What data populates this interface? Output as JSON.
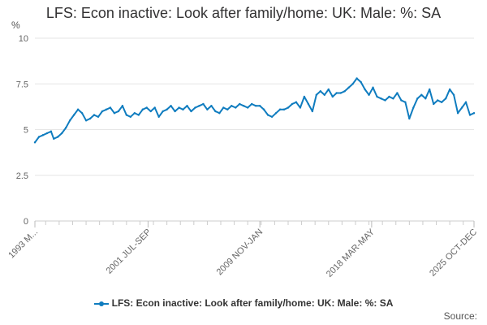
{
  "title": "LFS: Econ inactive: Look after family/home: UK: Male: %: SA",
  "y_unit": "%",
  "legend_label": "LFS: Econ inactive: Look after family/home: UK: Male: %: SA",
  "source_label": "Source:",
  "series_color": "#0f7cbf",
  "chart_data": {
    "type": "line",
    "ylim": [
      0,
      10
    ],
    "y_ticks": [
      0,
      2.5,
      5,
      7.5,
      10
    ],
    "y_tick_labels": [
      "0",
      "2.5",
      "5",
      "7.5",
      "10"
    ],
    "x_ticks": [
      1993.2,
      2001.6,
      2009.9,
      2018.2,
      2025.8
    ],
    "x_tick_labels": [
      "1993 M...",
      "2001 JUL-SEP",
      "2009 NOV-JAN",
      "2018 MAR-MAY",
      "2025 OCT-DEC"
    ],
    "grid": true,
    "legend_position": "bottom",
    "series": [
      {
        "name": "LFS: Econ inactive: Look after family/home: UK: Male: %: SA",
        "x": [
          1993.2,
          1993.5,
          1993.8,
          1994.1,
          1994.4,
          1994.6,
          1994.9,
          1995.2,
          1995.5,
          1995.8,
          1996.1,
          1996.4,
          1996.7,
          1997.0,
          1997.3,
          1997.6,
          1997.9,
          1998.2,
          1998.5,
          1998.8,
          1999.1,
          1999.4,
          1999.7,
          2000.0,
          2000.3,
          2000.6,
          2000.9,
          2001.2,
          2001.5,
          2001.8,
          2002.1,
          2002.4,
          2002.7,
          2003.0,
          2003.3,
          2003.6,
          2003.9,
          2004.2,
          2004.5,
          2004.8,
          2005.1,
          2005.4,
          2005.7,
          2006.0,
          2006.3,
          2006.6,
          2006.9,
          2007.2,
          2007.5,
          2007.8,
          2008.1,
          2008.4,
          2008.7,
          2009.0,
          2009.3,
          2009.6,
          2009.9,
          2010.2,
          2010.5,
          2010.8,
          2011.1,
          2011.4,
          2011.7,
          2012.0,
          2012.3,
          2012.6,
          2012.9,
          2013.2,
          2013.5,
          2013.8,
          2014.1,
          2014.4,
          2014.7,
          2015.0,
          2015.3,
          2015.6,
          2015.9,
          2016.2,
          2016.5,
          2016.8,
          2017.1,
          2017.4,
          2017.7,
          2018.0,
          2018.3,
          2018.6,
          2018.9,
          2019.2,
          2019.5,
          2019.8,
          2020.1,
          2020.4,
          2020.7,
          2021.0,
          2021.3,
          2021.6,
          2021.9,
          2022.2,
          2022.5,
          2022.8,
          2023.1,
          2023.4,
          2023.7,
          2024.0,
          2024.3,
          2024.6,
          2024.9,
          2025.2,
          2025.5,
          2025.8
        ],
        "values": [
          4.3,
          4.6,
          4.7,
          4.8,
          4.9,
          4.5,
          4.6,
          4.8,
          5.1,
          5.5,
          5.8,
          6.1,
          5.9,
          5.5,
          5.6,
          5.8,
          5.7,
          6.0,
          6.1,
          6.2,
          5.9,
          6.0,
          6.3,
          5.8,
          5.7,
          5.9,
          5.8,
          6.1,
          6.2,
          6.0,
          6.2,
          5.7,
          6.0,
          6.1,
          6.3,
          6.0,
          6.2,
          6.1,
          6.3,
          6.0,
          6.2,
          6.3,
          6.4,
          6.1,
          6.3,
          6.0,
          5.9,
          6.2,
          6.1,
          6.3,
          6.2,
          6.4,
          6.3,
          6.2,
          6.4,
          6.3,
          6.3,
          6.1,
          5.8,
          5.7,
          5.9,
          6.1,
          6.1,
          6.2,
          6.4,
          6.5,
          6.2,
          6.8,
          6.4,
          6.0,
          6.9,
          7.1,
          6.9,
          7.2,
          6.8,
          7.0,
          7.0,
          7.1,
          7.3,
          7.5,
          7.8,
          7.6,
          7.2,
          6.9,
          7.3,
          6.8,
          6.7,
          6.6,
          6.8,
          6.7,
          7.0,
          6.6,
          6.5,
          5.6,
          6.2,
          6.7,
          6.9,
          6.7,
          7.2,
          6.4,
          6.6,
          6.5,
          6.7,
          7.2,
          6.9,
          5.9,
          6.2,
          6.5,
          5.8,
          5.9
        ]
      }
    ]
  }
}
